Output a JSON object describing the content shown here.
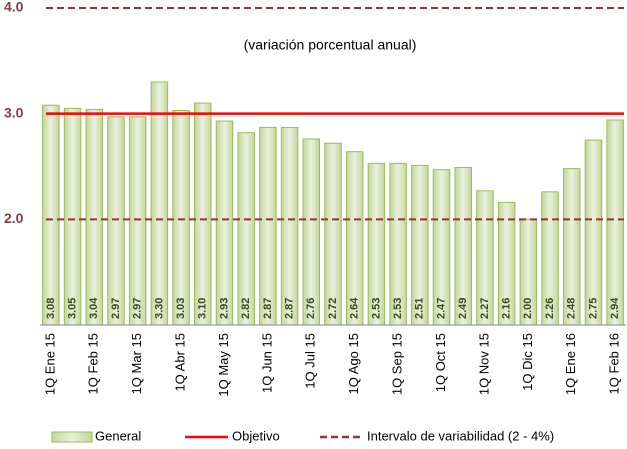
{
  "chart_data": {
    "type": "bar",
    "subtitle": "(variación porcentual anual)",
    "categories": [
      "1Q Ene 15",
      null,
      "1Q Feb 15",
      null,
      "1Q Mar 15",
      null,
      "1Q Abr 15",
      null,
      "1Q May 15",
      null,
      "1Q Jun 15",
      null,
      "1Q Jul 15",
      null,
      "1Q Ago 15",
      null,
      "1Q Sep 15",
      null,
      "1Q Oct 15",
      null,
      "1Q Nov 15",
      null,
      "1Q Dic 15",
      null,
      "1Q Ene 16",
      null,
      "1Q Feb 16"
    ],
    "series": [
      {
        "name": "General",
        "color": "#d7e4bd",
        "values": [
          3.08,
          3.05,
          3.04,
          2.97,
          2.97,
          3.3,
          3.03,
          3.1,
          2.93,
          2.82,
          2.87,
          2.87,
          2.76,
          2.72,
          2.64,
          2.53,
          2.53,
          2.51,
          2.47,
          2.49,
          2.27,
          2.16,
          2.0,
          2.26,
          2.48,
          2.75,
          2.94
        ],
        "value_labels": [
          "3.08",
          "3.05",
          "3.04",
          "2.97",
          "2.97",
          "3.30",
          "3.03",
          "3.10",
          "2.93",
          "2.82",
          "2.87",
          "2.87",
          "2.76",
          "2.72",
          "2.64",
          "2.53",
          "2.53",
          "2.51",
          "2.47",
          "2.49",
          "2.27",
          "2.16",
          "2.00",
          "2.26",
          "2.48",
          "2.75",
          "2.94"
        ]
      }
    ],
    "reference_lines": [
      {
        "name": "Objetivo",
        "color": "#ff0000",
        "style": "solid",
        "values": [
          3
        ]
      },
      {
        "name": "Intervalo de variabilidad (2 - 4%)",
        "color": "#993333",
        "style": "dashed",
        "values": [
          2,
          4
        ]
      }
    ],
    "ylim": [
      1,
      4
    ],
    "yticks": [
      {
        "value": 2,
        "label": "2.0"
      },
      {
        "value": 3,
        "label": "3.0"
      },
      {
        "value": 4,
        "label": "4.0"
      }
    ],
    "grid": false
  }
}
